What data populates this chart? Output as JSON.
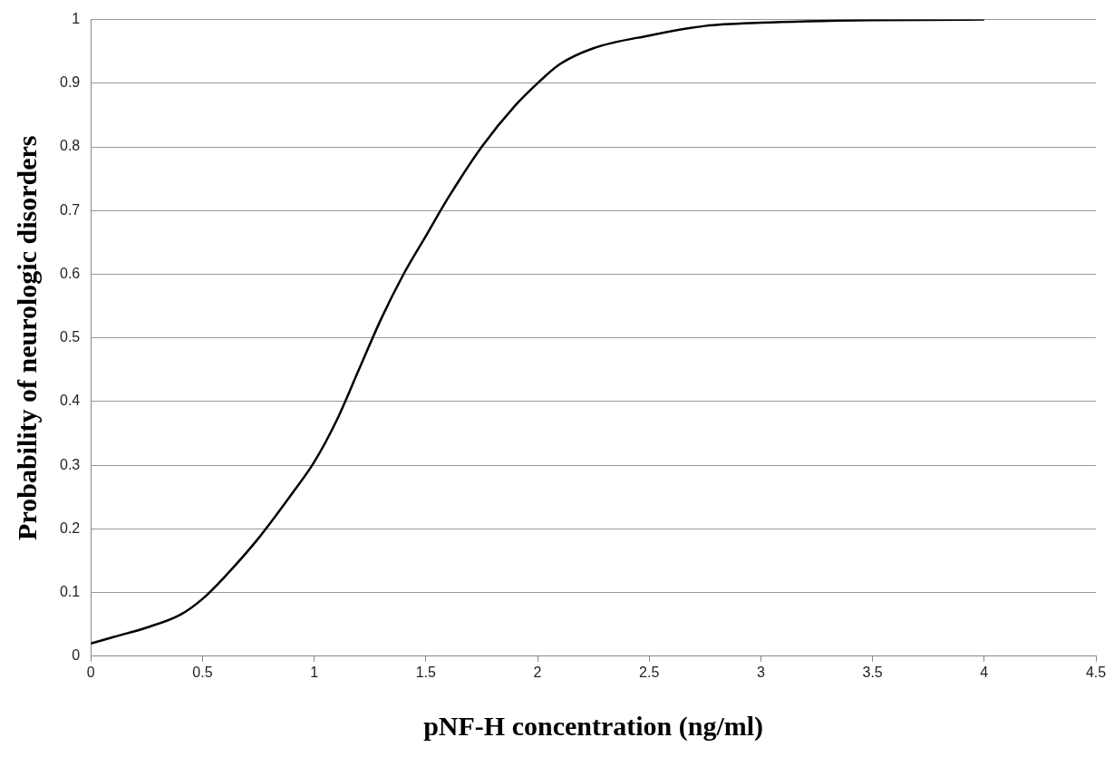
{
  "chart_data": {
    "type": "line",
    "xlabel": "pNF-H concentration (ng/ml)",
    "ylabel": "Probability of neurologic disorders",
    "x": [
      0,
      0.1,
      0.25,
      0.4,
      0.5,
      0.6,
      0.75,
      0.9,
      1,
      1.1,
      1.2,
      1.3,
      1.4,
      1.5,
      1.6,
      1.75,
      1.9,
      2,
      2.1,
      2.25,
      2.5,
      2.75,
      3,
      3.5,
      4
    ],
    "series": [
      {
        "color": "#000000",
        "values": [
          0.02,
          0.03,
          0.045,
          0.065,
          0.09,
          0.125,
          0.185,
          0.255,
          0.305,
          0.37,
          0.45,
          0.53,
          0.6,
          0.66,
          0.72,
          0.8,
          0.865,
          0.9,
          0.93,
          0.955,
          0.975,
          0.99,
          0.995,
          0.999,
          1.0
        ]
      }
    ],
    "xlim": [
      0,
      4.5
    ],
    "xticks": [
      0,
      0.5,
      1,
      1.5,
      2,
      2.5,
      3,
      3.5,
      4,
      4.5
    ],
    "ylim": [
      0,
      1
    ],
    "yticks": [
      0,
      0.1,
      0.2,
      0.3,
      0.4,
      0.5,
      0.6,
      0.7,
      0.8,
      0.9,
      1
    ],
    "grid": "y",
    "legend": false,
    "marker": "none",
    "line_style": "solid"
  }
}
